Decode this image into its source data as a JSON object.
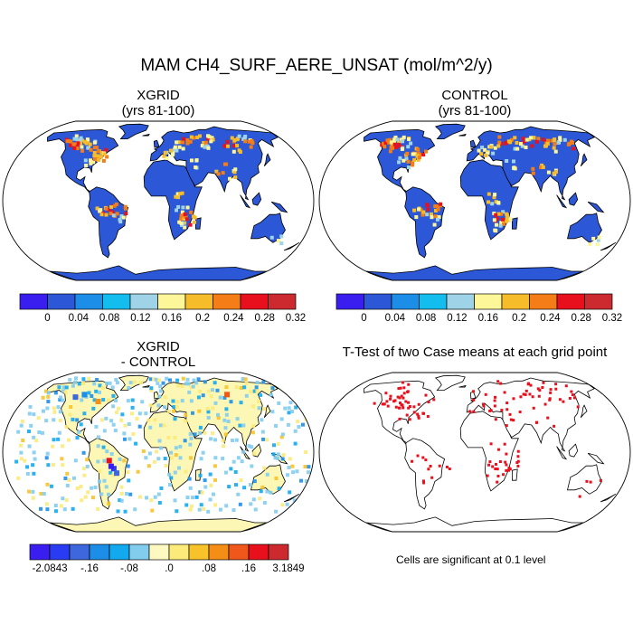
{
  "title": "MAM CH4_SURF_AERE_UNSAT (mol/m^2/y)",
  "panels": {
    "xgrid": {
      "title": "XGRID",
      "subtitle": "(yrs 81-100)"
    },
    "control": {
      "title": "CONTROL",
      "subtitle": "(yrs 81-100)"
    },
    "diff": {
      "title": "XGRID",
      "subtitle": "- CONTROL"
    },
    "ttest": {
      "title": "T-Test of two Case means at each grid point"
    }
  },
  "colorbar_top": {
    "colors": [
      "#3a1ef0",
      "#2c57d6",
      "#1d8ee8",
      "#13bdee",
      "#9fd3e8",
      "#fdf79a",
      "#f7bc2a",
      "#f57d17",
      "#e8101d",
      "#cc2a2e"
    ],
    "labels": [
      "0",
      "0.04",
      "0.08",
      "0.12",
      "0.16",
      "0.2",
      "0.24",
      "0.28",
      "0.32"
    ]
  },
  "colorbar_bottom": {
    "colors": [
      "#3a1ef0",
      "#2a3cf2",
      "#3e67dd",
      "#1d8ee8",
      "#13a9ef",
      "#82ccee",
      "#fdf9c0",
      "#fcea7a",
      "#f7c22a",
      "#f58e17",
      "#f0581b",
      "#e8101d",
      "#cc2a2e"
    ],
    "labels": [
      "-2.0843",
      "-.16",
      "-.08",
      ".0",
      ".08",
      ".16",
      "3.1849"
    ]
  },
  "note": "Cells are significant at 0.1 level",
  "colors": {
    "land": "#2c57d6",
    "diff_land": "#fdf7b6",
    "significant": "#e8101d",
    "coast": "#000000"
  }
}
